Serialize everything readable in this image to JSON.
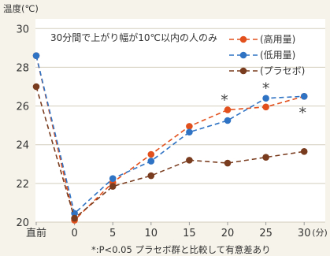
{
  "chart_data": {
    "type": "line",
    "ylabel": "温度(℃)",
    "annotation": "30分間で上がり幅が10℃以内の人のみ",
    "footnote": "*:P<0.05 プラセボ群と比較して有意差あり",
    "x_tick_labels": [
      "直前",
      "0",
      "5",
      "10",
      "15",
      "20",
      "25",
      "30"
    ],
    "x_unit": "(分)",
    "y_ticks": [
      "20",
      "22",
      "24",
      "26",
      "28",
      "30"
    ],
    "ylim": [
      20,
      30.5
    ],
    "grid": "horizontal",
    "legend_position": "top-right",
    "series": [
      {
        "name": "(高用量)",
        "color": "#e2511d",
        "values": [
          28.6,
          20.1,
          22.05,
          23.5,
          24.95,
          25.8,
          25.95,
          26.5
        ]
      },
      {
        "name": "(低用量)",
        "color": "#2f73c4",
        "values": [
          28.6,
          20.45,
          22.25,
          23.15,
          24.65,
          25.25,
          26.4,
          26.5
        ]
      },
      {
        "name": "(プラセボ)",
        "color": "#7a3c1e",
        "values": [
          27.0,
          20.2,
          21.85,
          22.4,
          23.2,
          23.05,
          23.35,
          23.65
        ]
      }
    ],
    "significance_marker": "*",
    "significance_points": [
      {
        "x_index": 5,
        "series_index": 0
      },
      {
        "x_index": 6,
        "series_index": 1
      },
      {
        "x_index": 7,
        "series_index": 0
      }
    ]
  }
}
